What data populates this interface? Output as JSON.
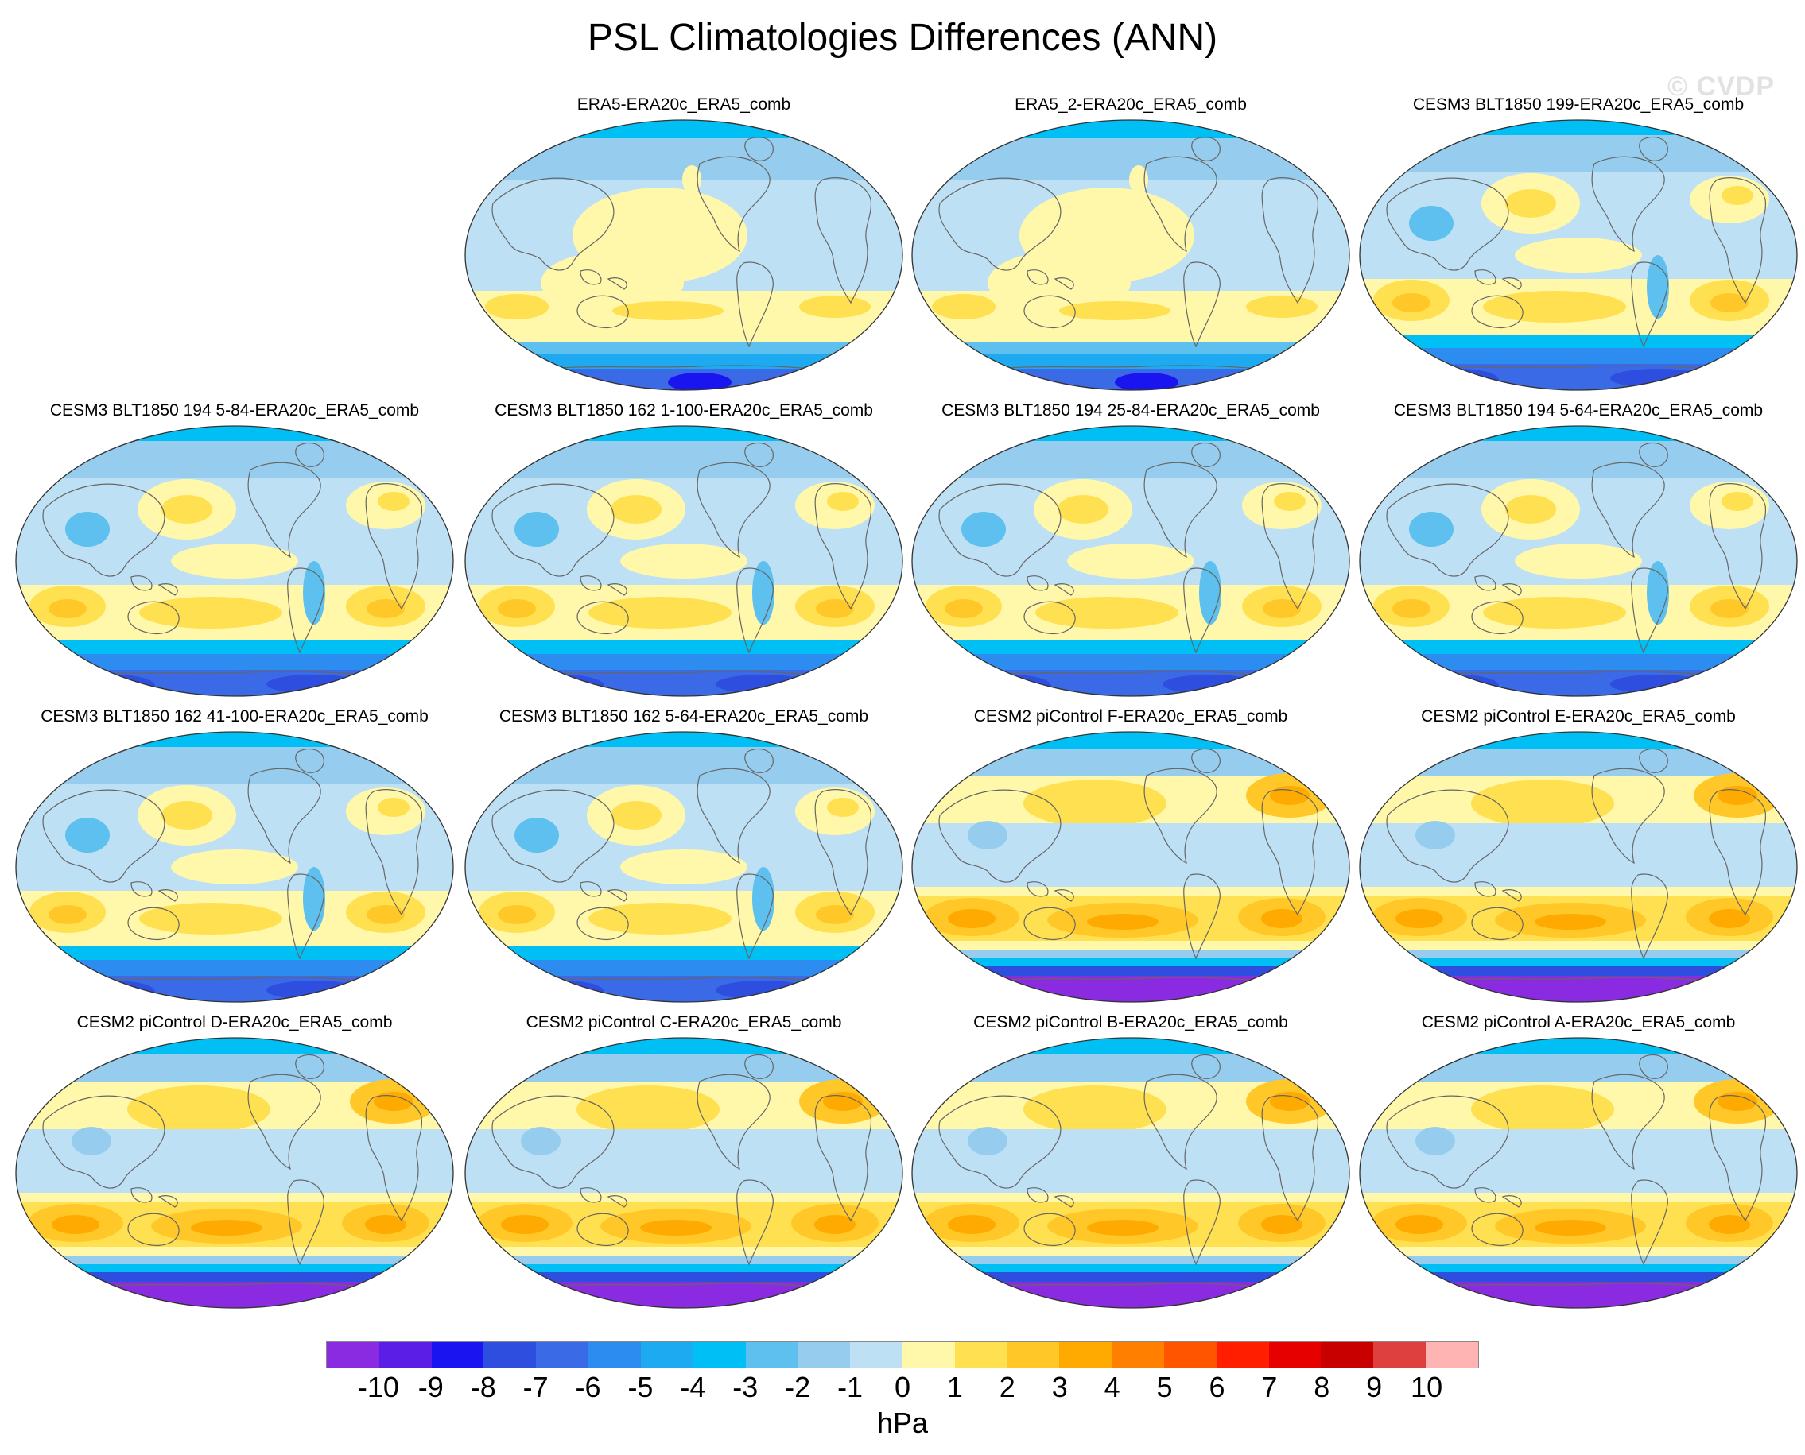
{
  "title": "PSL Climatologies Differences (ANN)",
  "watermark": "© CVDP",
  "panels": [
    {
      "title": "ERA5-ERA20c_ERA5_comb",
      "type": "a"
    },
    {
      "title": "ERA5_2-ERA20c_ERA5_comb",
      "type": "a"
    },
    {
      "title": "CESM3 BLT1850 199-ERA20c_ERA5_comb",
      "type": "b"
    },
    {
      "title": "CESM3 BLT1850 194 5-84-ERA20c_ERA5_comb",
      "type": "b"
    },
    {
      "title": "CESM3 BLT1850 162 1-100-ERA20c_ERA5_comb",
      "type": "b"
    },
    {
      "title": "CESM3 BLT1850 194 25-84-ERA20c_ERA5_comb",
      "type": "b"
    },
    {
      "title": "CESM3 BLT1850 194 5-64-ERA20c_ERA5_comb",
      "type": "b"
    },
    {
      "title": "CESM3 BLT1850 162 41-100-ERA20c_ERA5_comb",
      "type": "b"
    },
    {
      "title": "CESM3 BLT1850 162 5-64-ERA20c_ERA5_comb",
      "type": "b"
    },
    {
      "title": "CESM2 piControl F-ERA20c_ERA5_comb",
      "type": "c"
    },
    {
      "title": "CESM2 piControl E-ERA20c_ERA5_comb",
      "type": "c"
    },
    {
      "title": "CESM2 piControl D-ERA20c_ERA5_comb",
      "type": "c"
    },
    {
      "title": "CESM2 piControl C-ERA20c_ERA5_comb",
      "type": "c"
    },
    {
      "title": "CESM2 piControl B-ERA20c_ERA5_comb",
      "type": "c"
    },
    {
      "title": "CESM2 piControl A-ERA20c_ERA5_comb",
      "type": "c"
    }
  ],
  "colorbar": {
    "units": "hPa",
    "ticks": [
      "-10",
      "-9",
      "-8",
      "-7",
      "-6",
      "-5",
      "-4",
      "-3",
      "-2",
      "-1",
      "0",
      "1",
      "2",
      "3",
      "4",
      "5",
      "6",
      "7",
      "8",
      "9",
      "10"
    ],
    "colors": [
      "#8a2be2",
      "#5a1ee6",
      "#1a14f0",
      "#2e4ee0",
      "#3a6ae6",
      "#2d8cf0",
      "#1eaaf0",
      "#00bff5",
      "#5ec0ee",
      "#96cdee",
      "#bee0f5",
      "#fff8aa",
      "#ffe050",
      "#ffc828",
      "#ffaa00",
      "#ff8000",
      "#ff5500",
      "#ff1e00",
      "#e60000",
      "#c80000",
      "#de4040",
      "#ffb4b4"
    ]
  }
}
